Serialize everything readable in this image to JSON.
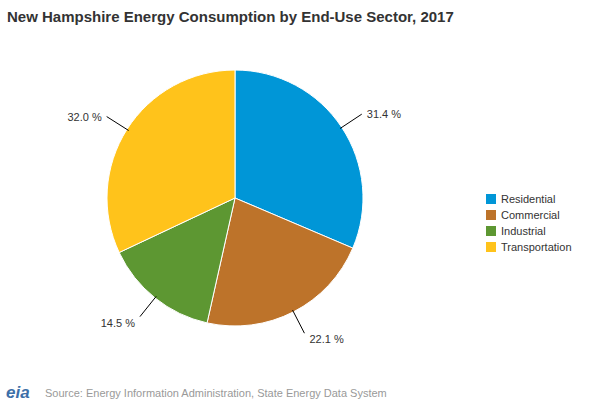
{
  "chart_data": {
    "type": "pie",
    "title": "New Hampshire Energy Consumption by End-Use Sector, 2017",
    "categories": [
      "Residential",
      "Commercial",
      "Industrial",
      "Transportation"
    ],
    "values": [
      31.4,
      22.1,
      14.5,
      32.0
    ],
    "value_labels": [
      "31.4 %",
      "22.1 %",
      "14.5 %",
      "32.0 %"
    ],
    "colors": [
      "#0096d7",
      "#bd732a",
      "#5d9732",
      "#ffc31b"
    ],
    "data_labels": true,
    "legend": "right",
    "source": "Source: Energy Information Administration, State Energy Data System",
    "logo": "eia"
  }
}
